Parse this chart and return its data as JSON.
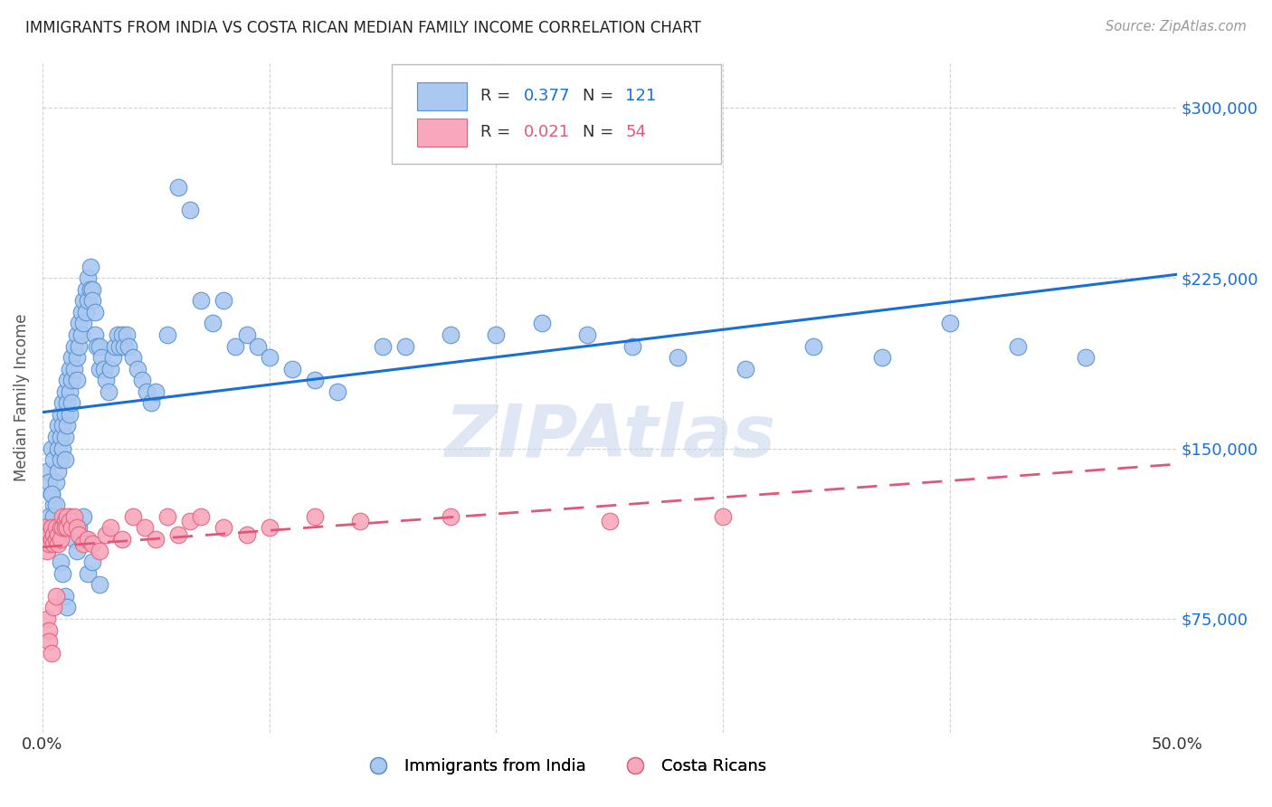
{
  "title": "IMMIGRANTS FROM INDIA VS COSTA RICAN MEDIAN FAMILY INCOME CORRELATION CHART",
  "source": "Source: ZipAtlas.com",
  "ylabel": "Median Family Income",
  "y_ticks": [
    75000,
    150000,
    225000,
    300000
  ],
  "y_tick_labels": [
    "$75,000",
    "$150,000",
    "$225,000",
    "$300,000"
  ],
  "xlim": [
    0.0,
    0.5
  ],
  "ylim": [
    25000,
    320000
  ],
  "legend_india_R": "0.377",
  "legend_india_N": "121",
  "legend_costa_R": "0.021",
  "legend_costa_N": "54",
  "india_color": "#aac8f0",
  "india_edge_color": "#5590d0",
  "costa_color": "#f8a8bc",
  "costa_edge_color": "#e0607a",
  "trend_india_color": "#1a6fd4",
  "trend_costa_color": "#e05878",
  "watermark": "ZIPAtlas",
  "background_color": "#ffffff",
  "india_x": [
    0.002,
    0.003,
    0.004,
    0.004,
    0.005,
    0.005,
    0.006,
    0.006,
    0.007,
    0.007,
    0.007,
    0.008,
    0.008,
    0.008,
    0.009,
    0.009,
    0.009,
    0.01,
    0.01,
    0.01,
    0.01,
    0.011,
    0.011,
    0.011,
    0.012,
    0.012,
    0.012,
    0.013,
    0.013,
    0.013,
    0.014,
    0.014,
    0.015,
    0.015,
    0.015,
    0.016,
    0.016,
    0.017,
    0.017,
    0.018,
    0.018,
    0.019,
    0.019,
    0.02,
    0.02,
    0.021,
    0.021,
    0.022,
    0.022,
    0.023,
    0.023,
    0.024,
    0.025,
    0.025,
    0.026,
    0.027,
    0.028,
    0.029,
    0.03,
    0.031,
    0.032,
    0.033,
    0.034,
    0.035,
    0.036,
    0.037,
    0.038,
    0.04,
    0.042,
    0.044,
    0.046,
    0.048,
    0.05,
    0.055,
    0.06,
    0.065,
    0.07,
    0.075,
    0.08,
    0.085,
    0.09,
    0.095,
    0.1,
    0.11,
    0.12,
    0.13,
    0.15,
    0.16,
    0.18,
    0.2,
    0.22,
    0.24,
    0.26,
    0.28,
    0.31,
    0.34,
    0.37,
    0.4,
    0.43,
    0.46,
    0.003,
    0.004,
    0.005,
    0.006,
    0.006,
    0.007,
    0.008,
    0.009,
    0.01,
    0.011,
    0.012,
    0.013,
    0.014,
    0.015,
    0.016,
    0.017,
    0.018,
    0.019,
    0.02,
    0.022,
    0.025
  ],
  "india_y": [
    140000,
    135000,
    150000,
    130000,
    145000,
    125000,
    155000,
    135000,
    160000,
    150000,
    140000,
    165000,
    155000,
    145000,
    170000,
    160000,
    150000,
    175000,
    165000,
    155000,
    145000,
    180000,
    170000,
    160000,
    185000,
    175000,
    165000,
    190000,
    180000,
    170000,
    195000,
    185000,
    200000,
    190000,
    180000,
    205000,
    195000,
    210000,
    200000,
    215000,
    205000,
    220000,
    210000,
    225000,
    215000,
    230000,
    220000,
    220000,
    215000,
    200000,
    210000,
    195000,
    185000,
    195000,
    190000,
    185000,
    180000,
    175000,
    185000,
    190000,
    195000,
    200000,
    195000,
    200000,
    195000,
    200000,
    195000,
    190000,
    185000,
    180000,
    175000,
    170000,
    175000,
    200000,
    265000,
    255000,
    215000,
    205000,
    215000,
    195000,
    200000,
    195000,
    190000,
    185000,
    180000,
    175000,
    195000,
    195000,
    200000,
    200000,
    205000,
    200000,
    195000,
    190000,
    185000,
    195000,
    190000,
    205000,
    195000,
    190000,
    120000,
    130000,
    120000,
    115000,
    125000,
    115000,
    100000,
    95000,
    85000,
    80000,
    120000,
    115000,
    110000,
    105000,
    115000,
    110000,
    120000,
    110000,
    95000,
    100000,
    90000
  ],
  "costa_x": [
    0.001,
    0.002,
    0.002,
    0.003,
    0.003,
    0.004,
    0.004,
    0.005,
    0.005,
    0.006,
    0.006,
    0.007,
    0.007,
    0.008,
    0.008,
    0.009,
    0.009,
    0.01,
    0.01,
    0.011,
    0.011,
    0.012,
    0.013,
    0.014,
    0.015,
    0.016,
    0.018,
    0.02,
    0.022,
    0.025,
    0.028,
    0.03,
    0.035,
    0.04,
    0.045,
    0.05,
    0.055,
    0.06,
    0.065,
    0.07,
    0.08,
    0.09,
    0.1,
    0.12,
    0.14,
    0.18,
    0.25,
    0.3,
    0.002,
    0.003,
    0.003,
    0.004,
    0.005,
    0.006
  ],
  "costa_y": [
    115000,
    110000,
    105000,
    112000,
    108000,
    115000,
    110000,
    112000,
    108000,
    115000,
    110000,
    112000,
    108000,
    115000,
    110000,
    120000,
    115000,
    118000,
    115000,
    120000,
    115000,
    118000,
    115000,
    120000,
    115000,
    112000,
    108000,
    110000,
    108000,
    105000,
    112000,
    115000,
    110000,
    120000,
    115000,
    110000,
    120000,
    112000,
    118000,
    120000,
    115000,
    112000,
    115000,
    120000,
    118000,
    120000,
    118000,
    120000,
    75000,
    70000,
    65000,
    60000,
    80000,
    85000
  ]
}
